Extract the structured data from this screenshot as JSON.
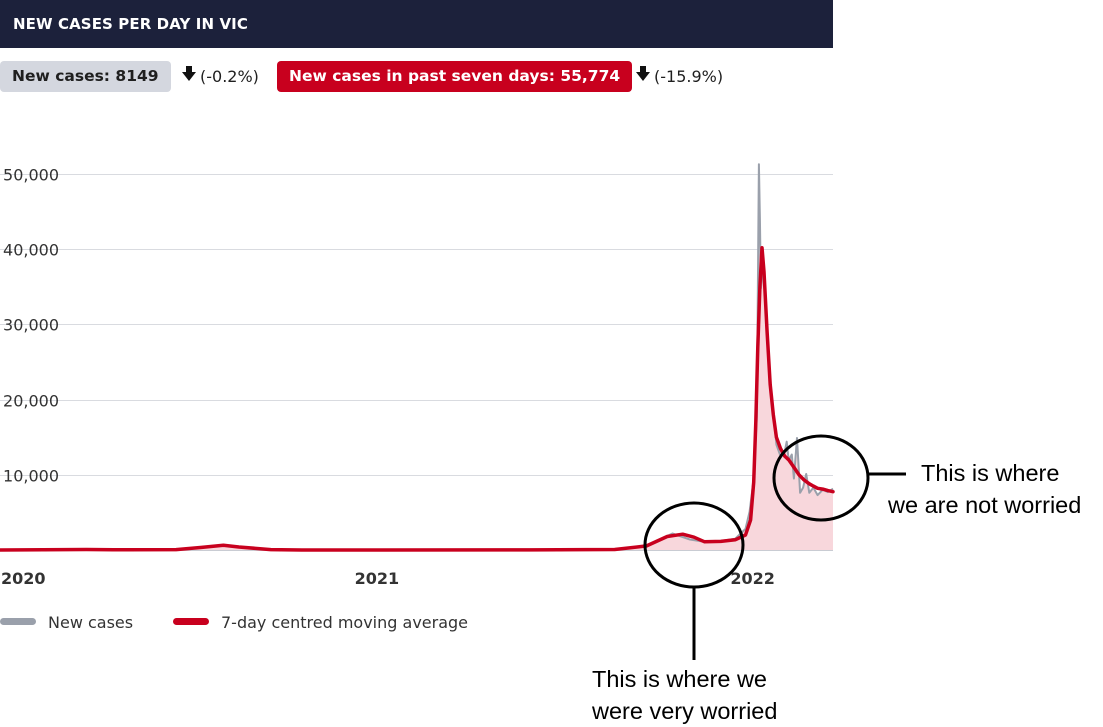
{
  "header": {
    "title": "NEW CASES PER DAY IN VIC"
  },
  "stats": {
    "new_cases_label": "New cases: 8149",
    "new_cases_change": "(-0.2%)",
    "seven_day_label": "New cases in past seven days: 55,774",
    "seven_day_change": "(-15.9%)"
  },
  "legend": {
    "new_cases": "New cases",
    "moving_average": "7-day centred moving average"
  },
  "annotations": {
    "not_worried_line1": "This is where",
    "not_worried_line2": "we are not worried",
    "very_worried_line1": "This is where we",
    "very_worried_line2": "were very worried"
  },
  "colors": {
    "header_bg": "#1c213b",
    "accent_red": "#c8001e",
    "raw_grey": "#9aa0ab",
    "area_fill": "#f8d7dc",
    "grid": "#d9dbe0"
  },
  "chart_data": {
    "type": "line",
    "title": "NEW CASES PER DAY IN VIC",
    "xlabel": "",
    "ylabel": "",
    "x_start": "2020-01-01",
    "x_end": "2022-03-20",
    "x_ticks": [
      {
        "label": "2020",
        "date": "2020-01-01"
      },
      {
        "label": "2021",
        "date": "2021-01-01"
      },
      {
        "label": "2022",
        "date": "2022-01-01"
      }
    ],
    "ylim": [
      0,
      50000
    ],
    "y_ticks": [
      {
        "label": "10,000",
        "value": 10000
      },
      {
        "label": "20,000",
        "value": 20000
      },
      {
        "label": "30,000",
        "value": 30000
      },
      {
        "label": "40,000",
        "value": 40000
      },
      {
        "label": "50,000",
        "value": 50000
      }
    ],
    "grid": true,
    "series": [
      {
        "name": "New cases",
        "color": "#9aa0ab",
        "points": [
          [
            "2020-01-01",
            0
          ],
          [
            "2020-03-20",
            100
          ],
          [
            "2020-04-15",
            20
          ],
          [
            "2020-06-20",
            60
          ],
          [
            "2020-07-15",
            400
          ],
          [
            "2020-08-05",
            700
          ],
          [
            "2020-08-15",
            450
          ],
          [
            "2020-09-15",
            60
          ],
          [
            "2020-10-20",
            5
          ],
          [
            "2021-05-30",
            10
          ],
          [
            "2021-08-20",
            50
          ],
          [
            "2021-09-20",
            600
          ],
          [
            "2021-10-15",
            2200
          ],
          [
            "2021-11-01",
            1400
          ],
          [
            "2021-11-15",
            1100
          ],
          [
            "2021-12-01",
            1200
          ],
          [
            "2021-12-15",
            1500
          ],
          [
            "2021-12-25",
            2800
          ],
          [
            "2021-12-29",
            5100
          ],
          [
            "2022-01-02",
            9500
          ],
          [
            "2022-01-05",
            17700
          ],
          [
            "2022-01-07",
            51300
          ],
          [
            "2022-01-08",
            44100
          ],
          [
            "2022-01-09",
            34800
          ],
          [
            "2022-01-11",
            37900
          ],
          [
            "2022-01-13",
            34800
          ],
          [
            "2022-01-15",
            29100
          ],
          [
            "2022-01-18",
            22200
          ],
          [
            "2022-01-21",
            18500
          ],
          [
            "2022-01-24",
            14000
          ],
          [
            "2022-01-28",
            12500
          ],
          [
            "2022-02-01",
            13000
          ],
          [
            "2022-02-03",
            14400
          ],
          [
            "2022-02-05",
            11900
          ],
          [
            "2022-02-08",
            12700
          ],
          [
            "2022-02-10",
            9500
          ],
          [
            "2022-02-13",
            14900
          ],
          [
            "2022-02-16",
            7600
          ],
          [
            "2022-02-19",
            8300
          ],
          [
            "2022-02-22",
            10100
          ],
          [
            "2022-02-25",
            7600
          ],
          [
            "2022-03-01",
            8300
          ],
          [
            "2022-03-05",
            7300
          ],
          [
            "2022-03-10",
            8000
          ],
          [
            "2022-03-15",
            7700
          ],
          [
            "2022-03-20",
            8149
          ]
        ]
      },
      {
        "name": "7-day centred moving average",
        "color": "#c8001e",
        "points": [
          [
            "2020-01-01",
            0
          ],
          [
            "2020-03-25",
            60
          ],
          [
            "2020-04-20",
            20
          ],
          [
            "2020-06-20",
            50
          ],
          [
            "2020-07-15",
            350
          ],
          [
            "2020-08-05",
            620
          ],
          [
            "2020-08-20",
            400
          ],
          [
            "2020-09-20",
            50
          ],
          [
            "2020-10-20",
            5
          ],
          [
            "2021-05-30",
            10
          ],
          [
            "2021-08-20",
            60
          ],
          [
            "2021-09-20",
            550
          ],
          [
            "2021-10-10",
            1800
          ],
          [
            "2021-10-25",
            2100
          ],
          [
            "2021-11-05",
            1700
          ],
          [
            "2021-11-15",
            1100
          ],
          [
            "2021-12-01",
            1150
          ],
          [
            "2021-12-15",
            1350
          ],
          [
            "2021-12-25",
            2000
          ],
          [
            "2021-12-30",
            4000
          ],
          [
            "2022-01-02",
            9000
          ],
          [
            "2022-01-04",
            17000
          ],
          [
            "2022-01-06",
            27000
          ],
          [
            "2022-01-08",
            35000
          ],
          [
            "2022-01-10",
            40200
          ],
          [
            "2022-01-12",
            37000
          ],
          [
            "2022-01-15",
            29000
          ],
          [
            "2022-01-18",
            22000
          ],
          [
            "2022-01-21",
            18000
          ],
          [
            "2022-01-24",
            15000
          ],
          [
            "2022-01-28",
            13500
          ],
          [
            "2022-02-01",
            12500
          ],
          [
            "2022-02-05",
            12000
          ],
          [
            "2022-02-10",
            11000
          ],
          [
            "2022-02-15",
            10000
          ],
          [
            "2022-02-20",
            9300
          ],
          [
            "2022-02-25",
            8800
          ],
          [
            "2022-03-01",
            8500
          ],
          [
            "2022-03-05",
            8200
          ],
          [
            "2022-03-10",
            8100
          ],
          [
            "2022-03-15",
            7900
          ],
          [
            "2022-03-20",
            7750
          ]
        ]
      }
    ]
  }
}
